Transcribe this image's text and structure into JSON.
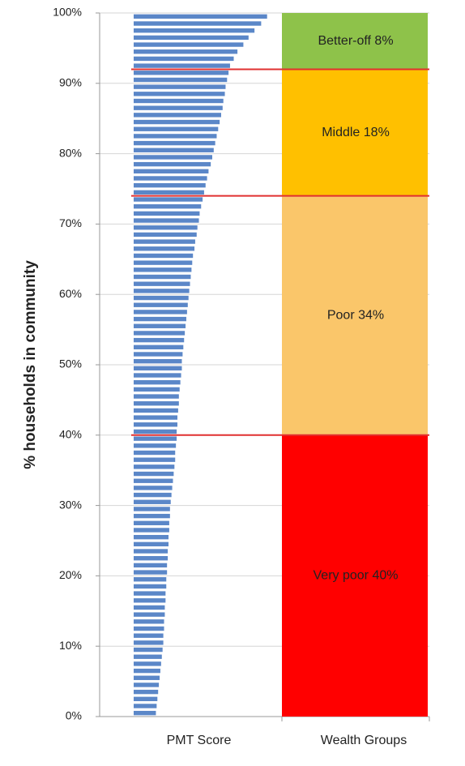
{
  "chart_data": {
    "type": "bar",
    "ylabel": "% households in community",
    "categories": [
      "PMT Score",
      "Wealth Groups"
    ],
    "ylim": [
      0,
      100
    ],
    "yticks": [
      {
        "value": 0,
        "label": "0%"
      },
      {
        "value": 10,
        "label": "10%"
      },
      {
        "value": 20,
        "label": "20%"
      },
      {
        "value": 30,
        "label": "30%"
      },
      {
        "value": 40,
        "label": "40%"
      },
      {
        "value": 50,
        "label": "50%"
      },
      {
        "value": 60,
        "label": "60%"
      },
      {
        "value": 70,
        "label": "70%"
      },
      {
        "value": 80,
        "label": "80%"
      },
      {
        "value": 90,
        "label": "90%"
      },
      {
        "value": 100,
        "label": "100%"
      }
    ],
    "grid": true,
    "pmt_scores": {
      "color": "#5b87c8",
      "xlim": [
        0,
        200
      ],
      "values": [
        30,
        31,
        32,
        33,
        34,
        35,
        36,
        37,
        38,
        39,
        40,
        40,
        41,
        41,
        42,
        42,
        43,
        43,
        44,
        44,
        45,
        45,
        46,
        46,
        47,
        47,
        48,
        48,
        49,
        49,
        50,
        51,
        52,
        53,
        54,
        55,
        56,
        56,
        57,
        58,
        58,
        59,
        59,
        60,
        61,
        61,
        62,
        63,
        64,
        65,
        65,
        66,
        67,
        68,
        69,
        70,
        71,
        72,
        73,
        74,
        75,
        76,
        77,
        78,
        79,
        80,
        82,
        83,
        85,
        86,
        88,
        89,
        91,
        93,
        95,
        97,
        99,
        101,
        104,
        106,
        108,
        110,
        112,
        114,
        116,
        118,
        120,
        121,
        123,
        124,
        126,
        128,
        130,
        135,
        140,
        148,
        155,
        163,
        172,
        180
      ]
    },
    "wealth_groups": [
      {
        "label": "Very poor 40%",
        "value": 40,
        "color": "#ff0000"
      },
      {
        "label": "Poor 34%",
        "value": 34,
        "color": "#fac66a"
      },
      {
        "label": "Middle 18%",
        "value": 18,
        "color": "#ffc000"
      },
      {
        "label": "Better-off 8%",
        "value": 8,
        "color": "#8ec24a"
      }
    ],
    "threshold_color": "#e03030"
  }
}
